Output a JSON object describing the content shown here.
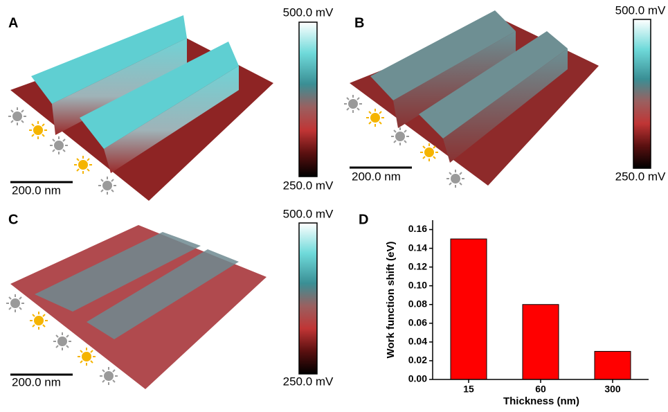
{
  "panels": [
    {
      "label": "A",
      "scale_bar": "200.0 nm",
      "colorbar_max": "500.0 mV",
      "colorbar_min": "250.0 mV"
    },
    {
      "label": "B",
      "scale_bar": "200.0 nm",
      "colorbar_max": "500.0 mV",
      "colorbar_min": "250.0 mV"
    },
    {
      "label": "C",
      "scale_bar": "200.0 nm",
      "colorbar_max": "500.0 mV",
      "colorbar_min": "250.0 mV"
    }
  ],
  "chart_data": {
    "type": "bar",
    "panel_label": "D",
    "xlabel": "Thickness (nm)",
    "ylabel": "Work function shift (eV)",
    "categories": [
      "15",
      "60",
      "300"
    ],
    "values": [
      0.15,
      0.08,
      0.03
    ],
    "color": "#ff0000",
    "ylim": [
      0,
      0.17
    ],
    "yticks": [
      {
        "value": 0,
        "label": "0.00"
      },
      {
        "value": 0.02,
        "label": "0.02"
      },
      {
        "value": 0.04,
        "label": "0.04"
      },
      {
        "value": 0.06,
        "label": "0.06"
      },
      {
        "value": 0.08,
        "label": "0.08"
      },
      {
        "value": 0.1,
        "label": "0.10"
      },
      {
        "value": 0.12,
        "label": "0.12"
      },
      {
        "value": 0.14,
        "label": "0.14"
      },
      {
        "value": 0.16,
        "label": "0.16"
      }
    ]
  }
}
